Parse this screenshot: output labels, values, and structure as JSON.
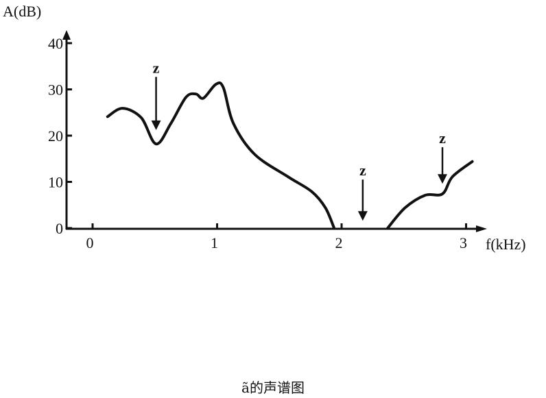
{
  "chart_data": {
    "type": "line",
    "ylabel": "A(dB)",
    "xlabel": "f(kHz)",
    "xlim": [
      0,
      3.1
    ],
    "ylim": [
      0,
      40
    ],
    "x_ticks": [
      "0",
      "1",
      "2",
      "3"
    ],
    "y_ticks": [
      "0",
      "10",
      "20",
      "30",
      "40"
    ],
    "grid": false,
    "series": [
      {
        "segments": [
          [
            [
              0.12,
              24.1
            ],
            [
              0.24,
              25.9
            ],
            [
              0.39,
              23.9
            ],
            [
              0.51,
              18.2
            ],
            [
              0.63,
              22.7
            ],
            [
              0.75,
              28.3
            ],
            [
              0.83,
              29.0
            ],
            [
              0.89,
              28.1
            ],
            [
              0.99,
              31.1
            ],
            [
              1.05,
              30.4
            ],
            [
              1.13,
              22.7
            ],
            [
              1.3,
              16.0
            ],
            [
              1.57,
              11.1
            ],
            [
              1.76,
              7.9
            ],
            [
              1.87,
              4.4
            ],
            [
              1.94,
              0
            ]
          ],
          [
            [
              2.37,
              0
            ],
            [
              2.51,
              4.4
            ],
            [
              2.67,
              7.1
            ],
            [
              2.81,
              7.4
            ],
            [
              2.89,
              11.1
            ],
            [
              3.05,
              14.4
            ]
          ]
        ]
      }
    ],
    "annotations": [
      {
        "text": "z",
        "x": 0.51,
        "y_from": 32.7,
        "y_to": 21.2
      },
      {
        "text": "z",
        "x": 2.17,
        "y_from": 10.5,
        "y_to": 1.6
      },
      {
        "text": "z",
        "x": 2.81,
        "y_from": 17.5,
        "y_to": 9.6
      }
    ],
    "caption": "ã的声谱图"
  }
}
